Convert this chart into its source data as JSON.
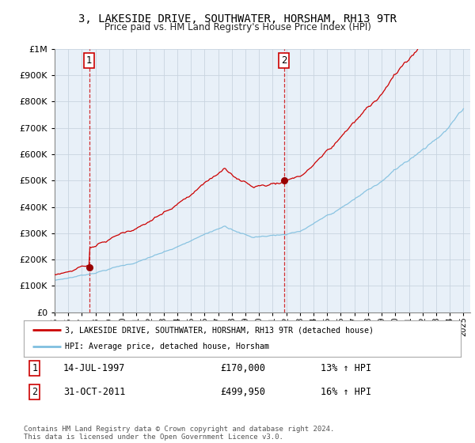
{
  "title": "3, LAKESIDE DRIVE, SOUTHWATER, HORSHAM, RH13 9TR",
  "subtitle": "Price paid vs. HM Land Registry's House Price Index (HPI)",
  "legend_line1": "3, LAKESIDE DRIVE, SOUTHWATER, HORSHAM, RH13 9TR (detached house)",
  "legend_line2": "HPI: Average price, detached house, Horsham",
  "annotation1_label": "1",
  "annotation1_date": "14-JUL-1997",
  "annotation1_price": "£170,000",
  "annotation1_hpi": "13% ↑ HPI",
  "annotation2_label": "2",
  "annotation2_date": "31-OCT-2011",
  "annotation2_price": "£499,950",
  "annotation2_hpi": "16% ↑ HPI",
  "footer": "Contains HM Land Registry data © Crown copyright and database right 2024.\nThis data is licensed under the Open Government Licence v3.0.",
  "sale1_year": 1997.54,
  "sale1_value": 170000,
  "sale2_year": 2011.83,
  "sale2_value": 499950,
  "hpi_color": "#7fbfdf",
  "price_color": "#cc0000",
  "marker_color": "#990000",
  "background_color": "#ffffff",
  "chart_bg_color": "#e8f0f8",
  "grid_color": "#c8d4e0",
  "ylim_min": 0,
  "ylim_max": 1000000,
  "xlim_min": 1995.0,
  "xlim_max": 2025.5
}
